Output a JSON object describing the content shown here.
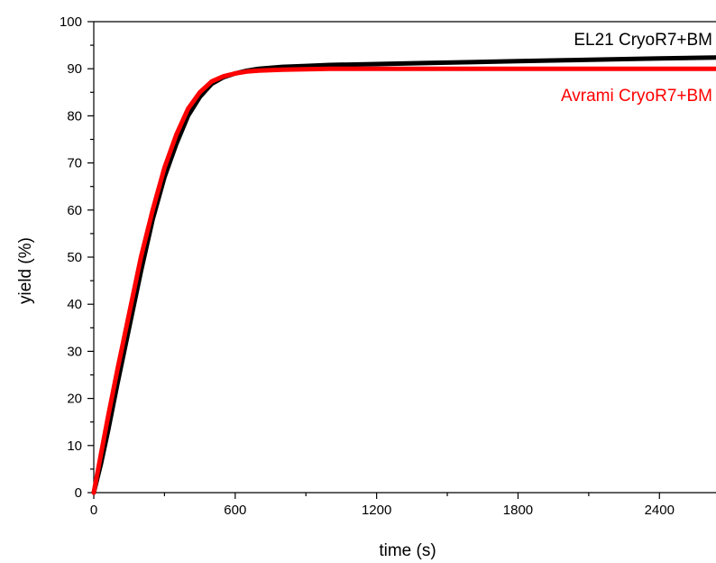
{
  "chart_data": {
    "type": "line",
    "xlabel": "time (s)",
    "ylabel": "yield (%)",
    "xlim": [
      0,
      2640
    ],
    "ylim": [
      0,
      100
    ],
    "x_ticks": [
      0,
      600,
      1200,
      1800,
      2400
    ],
    "y_ticks": [
      0,
      10,
      20,
      30,
      40,
      50,
      60,
      70,
      80,
      90,
      100
    ],
    "grid": false,
    "legend_placement": "inline-right",
    "series": [
      {
        "name": "EL21 CryoR7+BM",
        "color": "#000000",
        "x": [
          0,
          30,
          60,
          100,
          150,
          200,
          250,
          300,
          350,
          400,
          450,
          500,
          550,
          600,
          650,
          700,
          800,
          900,
          1000,
          1200,
          1400,
          1600,
          1800,
          2000,
          2200,
          2400,
          2640
        ],
        "y": [
          0,
          6,
          13,
          23,
          35,
          47,
          58,
          67,
          74,
          80,
          84,
          86.8,
          88.2,
          89.0,
          89.6,
          90.0,
          90.4,
          90.6,
          90.8,
          91.0,
          91.2,
          91.4,
          91.6,
          91.8,
          92.0,
          92.2,
          92.4
        ]
      },
      {
        "name": "Avrami CryoR7+BM",
        "color": "#ff0000",
        "x": [
          0,
          30,
          60,
          100,
          150,
          200,
          250,
          300,
          350,
          400,
          450,
          500,
          550,
          600,
          650,
          700,
          800,
          900,
          1000,
          1200,
          1400,
          1600,
          1800,
          2000,
          2200,
          2400,
          2640
        ],
        "y": [
          0,
          8,
          16,
          26,
          38,
          50,
          60,
          69,
          76,
          81.5,
          85,
          87.3,
          88.4,
          89.0,
          89.4,
          89.6,
          89.8,
          89.9,
          90.0,
          90.0,
          90.0,
          90.0,
          90.0,
          90.0,
          90.0,
          90.0,
          90.0
        ]
      }
    ]
  }
}
